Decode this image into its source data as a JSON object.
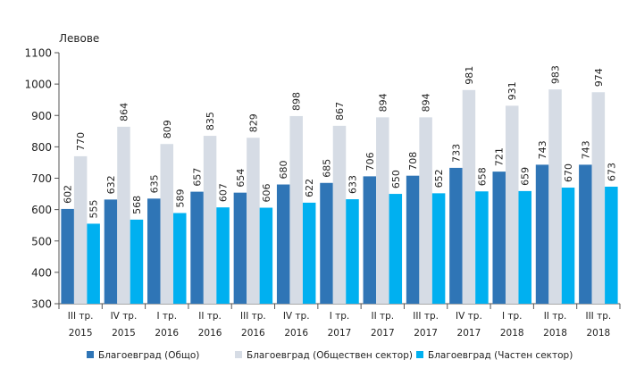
{
  "chart_data": {
    "type": "bar",
    "ylabel": "Левове",
    "ylim": [
      300,
      1100
    ],
    "yticks": [
      300,
      400,
      500,
      600,
      700,
      800,
      900,
      1000,
      1100
    ],
    "grid": false,
    "legend_position": "bottom",
    "categories": [
      [
        "III тр.",
        "2015"
      ],
      [
        "IV тр.",
        "2015"
      ],
      [
        "I тр.",
        "2016"
      ],
      [
        "II тр.",
        "2016"
      ],
      [
        "III тр.",
        "2016"
      ],
      [
        "IV тр.",
        "2016"
      ],
      [
        "I тр.",
        "2017"
      ],
      [
        "II тр.",
        "2017"
      ],
      [
        "III тр.",
        "2017"
      ],
      [
        "IV тр.",
        "2017"
      ],
      [
        "I тр.",
        "2018"
      ],
      [
        "II тр.",
        "2018"
      ],
      [
        "III тр.",
        "2018"
      ]
    ],
    "series": [
      {
        "name": "Благоевград (Общо)",
        "color": "#2f75b6",
        "values": [
          602,
          632,
          635,
          657,
          654,
          680,
          685,
          706,
          708,
          733,
          721,
          743,
          743
        ]
      },
      {
        "name": "Благоевград (Обществен сектор)",
        "color": "#d6dce5",
        "values": [
          770,
          864,
          809,
          835,
          829,
          898,
          867,
          894,
          894,
          981,
          931,
          983,
          974
        ]
      },
      {
        "name": "Благоевград (Частен сектор)",
        "color": "#00b0f0",
        "values": [
          555,
          568,
          589,
          607,
          606,
          622,
          633,
          650,
          652,
          658,
          659,
          670,
          673
        ]
      }
    ]
  }
}
